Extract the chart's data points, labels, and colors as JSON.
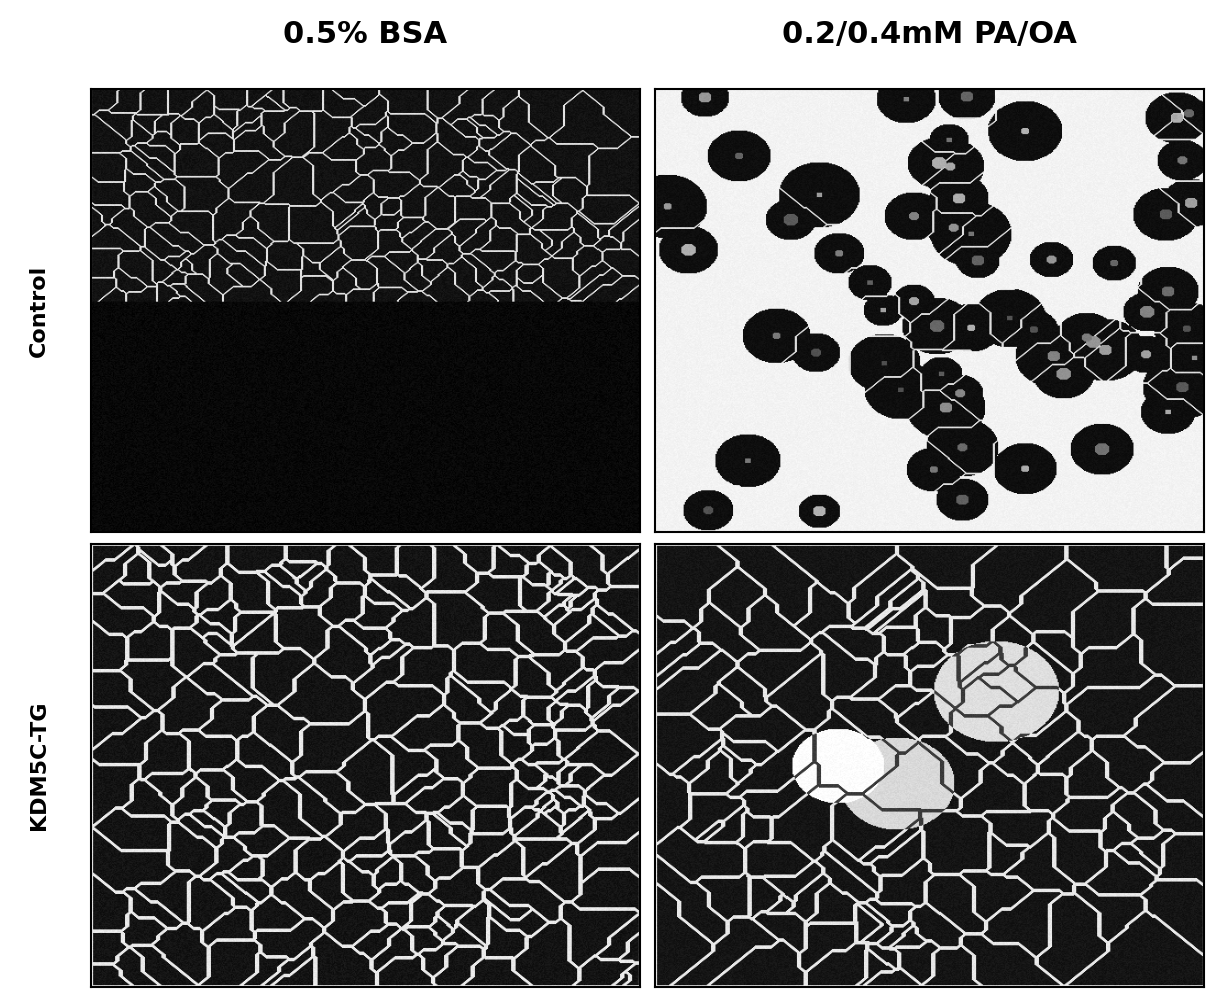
{
  "col_labels": [
    "0.5% BSA",
    "0.2/0.4mM PA/OA"
  ],
  "row_labels": [
    "Control",
    "KDM5C-TG"
  ],
  "col_label_fontsize": 22,
  "row_label_fontsize": 16,
  "col_label_fontweight": "black",
  "row_label_fontweight": "black",
  "background_color": "#ffffff",
  "figsize": [
    12.1,
    9.92
  ],
  "dpi": 100,
  "seed": 42
}
